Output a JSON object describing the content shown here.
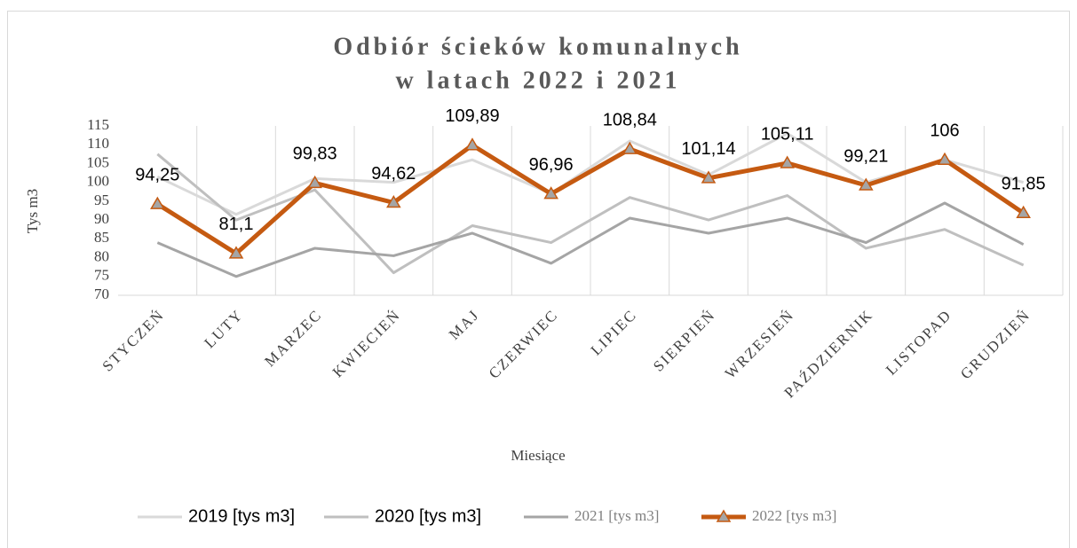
{
  "chart_data": {
    "type": "line",
    "title": [
      "Odbiór ścieków komunalnych",
      "w latach 2022 i 2021"
    ],
    "x_label": "Miesiące",
    "y_label": "Tys m3",
    "categories": [
      "STYCZEŃ",
      "LUTY",
      "MARZEC",
      "KWIECIEŃ",
      "MAJ",
      "CZERWIEC",
      "LIPIEC",
      "SIERPIEŃ",
      "WRZESIEŃ",
      "PAŹDZIERNIK",
      "LISTOPAD",
      "GRUDZIEŃ"
    ],
    "ylim": [
      70,
      115
    ],
    "yticks": [
      70,
      75,
      80,
      85,
      90,
      95,
      100,
      105,
      110,
      115
    ],
    "series": [
      {
        "name": "2019 [tys m3]",
        "color": "#d9d9d9",
        "values": [
          101.5,
          91.5,
          101,
          100,
          106,
          97,
          111,
          102,
          113,
          100,
          106,
          100
        ]
      },
      {
        "name": "2020 [tys m3]",
        "color": "#bfbfbf",
        "values": [
          107.5,
          90,
          98,
          76,
          88.5,
          84,
          96,
          90,
          96.5,
          82.5,
          87.5,
          78
        ]
      },
      {
        "name": "2021 [tys m3]",
        "color": "#a5a5a5",
        "values": [
          84,
          75,
          82.5,
          80.5,
          86.5,
          78.5,
          90.5,
          86.5,
          90.5,
          84,
          94.5,
          83.5
        ]
      },
      {
        "name": "2022 [tys m3]",
        "color": "#c55a11",
        "values": [
          94.25,
          81.1,
          99.83,
          94.62,
          109.89,
          96.96,
          108.84,
          101.14,
          105.11,
          99.21,
          106,
          91.85
        ],
        "value_labels": [
          "94,25",
          "81,1",
          "99,83",
          "94,62",
          "109,89",
          "96,96",
          "108,84",
          "101,14",
          "105,11",
          "99,21",
          "106",
          "91,85"
        ]
      }
    ]
  }
}
